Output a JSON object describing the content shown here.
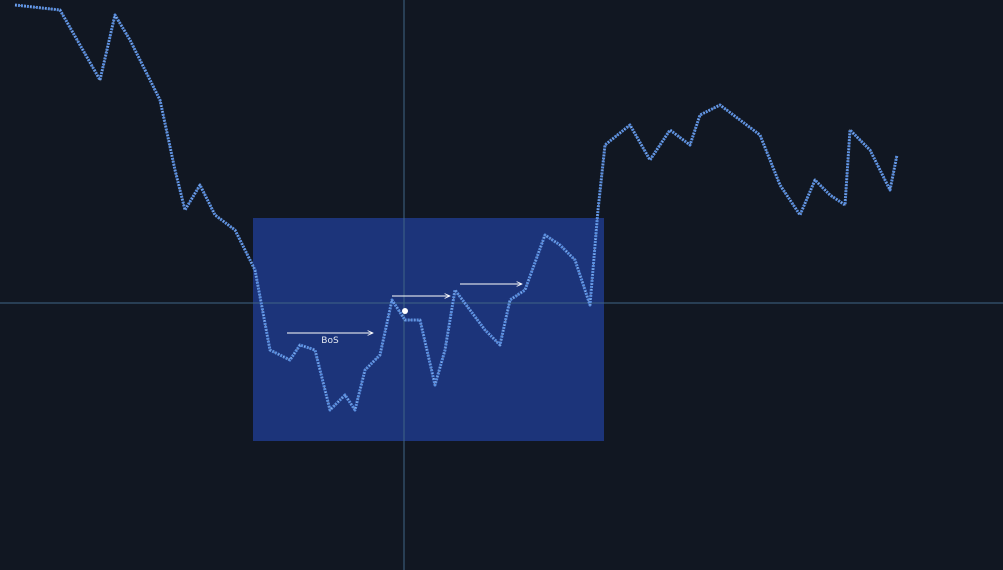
{
  "annotation": {
    "label": "BoS"
  }
}
